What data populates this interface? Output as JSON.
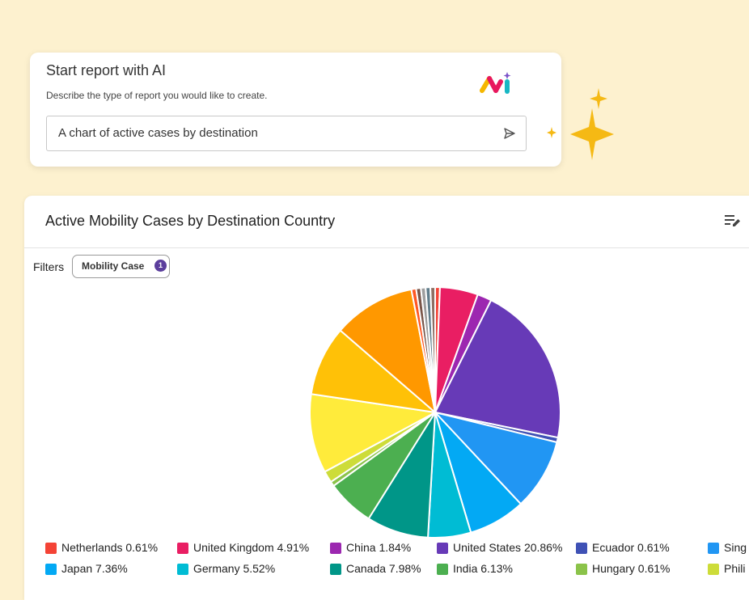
{
  "ai_panel": {
    "title": "Start report with AI",
    "subtitle": "Describe the type of report you would like to create.",
    "prompt_value": "A chart of active cases by destination",
    "logo_icon": "ai-logo-icon",
    "send_icon": "send-icon"
  },
  "report": {
    "title": "Active Mobility Cases by Destination Country",
    "edit_icon": "edit-list-icon",
    "filters_label": "Filters",
    "filter_chip": {
      "label": "Mobility Case",
      "count": "1"
    }
  },
  "chart_data": {
    "type": "pie",
    "title": "Active Mobility Cases by Destination Country",
    "slices": [
      {
        "label": "Netherlands",
        "value": 0.61,
        "display": "Netherlands 0.61%",
        "color": "#f44336"
      },
      {
        "label": "United Kingdom",
        "value": 4.91,
        "display": "United Kingdom 4.91%",
        "color": "#e91e63"
      },
      {
        "label": "China",
        "value": 1.84,
        "display": "China 1.84%",
        "color": "#9c27b0"
      },
      {
        "label": "United States",
        "value": 20.86,
        "display": "United States 20.86%",
        "color": "#673ab7"
      },
      {
        "label": "Ecuador",
        "value": 0.61,
        "display": "Ecuador 0.61%",
        "color": "#3f51b5"
      },
      {
        "label": "Sing",
        "value": 9.2,
        "display": "Sing",
        "color": "#2196f3"
      },
      {
        "label": "Japan",
        "value": 7.36,
        "display": "Japan 7.36%",
        "color": "#03a9f4"
      },
      {
        "label": "Germany",
        "value": 5.52,
        "display": "Germany 5.52%",
        "color": "#00bcd4"
      },
      {
        "label": "Canada",
        "value": 7.98,
        "display": "Canada 7.98%",
        "color": "#009688"
      },
      {
        "label": "India",
        "value": 6.13,
        "display": "India 6.13%",
        "color": "#4caf50"
      },
      {
        "label": "Hungary",
        "value": 0.61,
        "display": "Hungary 0.61%",
        "color": "#8bc34a"
      },
      {
        "label": "Phili",
        "value": 1.5,
        "display": "Phili",
        "color": "#cddc39"
      },
      {
        "label": "",
        "value": 10.2,
        "display": "",
        "color": "#ffeb3b"
      },
      {
        "label": "",
        "value": 9.0,
        "display": "",
        "color": "#ffc107"
      },
      {
        "label": "",
        "value": 10.6,
        "display": "",
        "color": "#ff9800"
      },
      {
        "label": "",
        "value": 0.61,
        "display": "",
        "color": "#ff5722"
      },
      {
        "label": "",
        "value": 0.61,
        "display": "",
        "color": "#795548"
      },
      {
        "label": "",
        "value": 0.61,
        "display": "",
        "color": "#9e9e9e"
      },
      {
        "label": "",
        "value": 0.61,
        "display": "",
        "color": "#607d8b"
      },
      {
        "label": "",
        "value": 0.61,
        "display": "",
        "color": "#8d6e63"
      }
    ],
    "legend": "bottom"
  }
}
